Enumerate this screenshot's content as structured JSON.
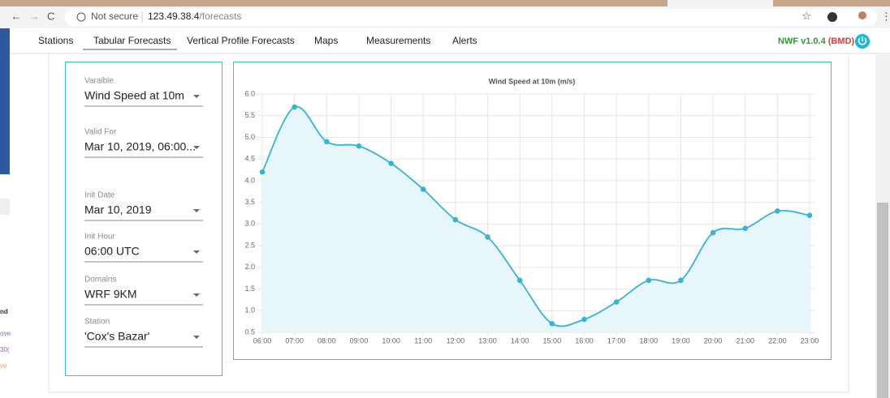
{
  "browser": {
    "security": "Not secure",
    "url_host": "123.49.38.4",
    "url_path": "/forecasts"
  },
  "background_fragments": [
    "nd",
    "ove",
    "30(",
    "ve"
  ],
  "nav": {
    "items": [
      "Stations",
      "Tabular Forecasts",
      "Vertical Profile Forecasts",
      "Maps",
      "Measurements",
      "Alerts"
    ],
    "version": "NWF v1.0.4",
    "org": "(BMD)"
  },
  "form": {
    "fields": [
      {
        "label": "Varaible",
        "value": "Wind Speed at 10m"
      },
      {
        "label": "Valid For",
        "value": "Mar 10, 2019, 06:00..."
      },
      {
        "label": "Init Date",
        "value": "Mar 10, 2019"
      },
      {
        "label": "Init Hour",
        "value": "06:00 UTC"
      },
      {
        "label": "Domains",
        "value": "WRF 9KM"
      },
      {
        "label": "Station",
        "value": "'Cox's Bazar'"
      }
    ]
  },
  "chart_data": {
    "type": "line",
    "title": "Wind Speed at 10m (m/s)",
    "categories": [
      "06:00",
      "07:00",
      "08:00",
      "09:00",
      "10:00",
      "11:00",
      "12:00",
      "13:00",
      "14:00",
      "15:00",
      "16:00",
      "17:00",
      "18:00",
      "19:00",
      "20:00",
      "21:00",
      "22:00",
      "23:00"
    ],
    "values": [
      4.2,
      5.7,
      4.9,
      4.8,
      4.4,
      3.8,
      3.1,
      2.7,
      1.7,
      0.7,
      0.8,
      1.2,
      1.7,
      1.7,
      2.8,
      2.9,
      3.3,
      3.2
    ],
    "color": "#36b4d8",
    "fill": "#e6f6fb",
    "ylim": [
      0.5,
      6
    ],
    "yticks": [
      0.5,
      {
        "value": 1,
        "label": "1.0"
      },
      1.5,
      {
        "value": 2,
        "label": "2.0"
      },
      2.5,
      {
        "value": 3,
        "label": "3.0"
      },
      3.5,
      {
        "value": 4,
        "label": "4.0"
      },
      4.5,
      {
        "value": 5,
        "label": "5.0"
      },
      5.5,
      {
        "value": 6,
        "label": "6.0"
      }
    ],
    "grid": true
  }
}
